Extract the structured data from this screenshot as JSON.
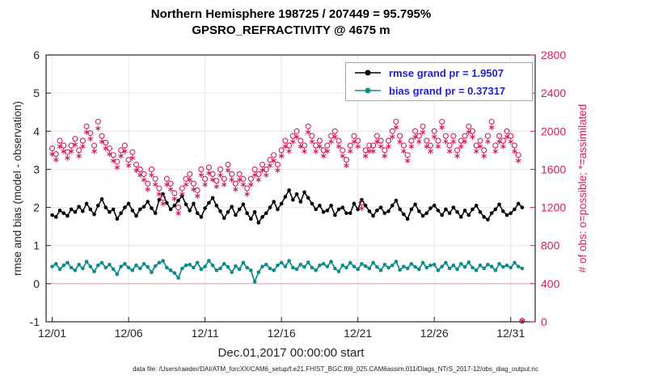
{
  "title": {
    "line1": "Northern Hemisphere 198725 / 207449 = 95.795%",
    "line2": "GPSRO_REFRACTIVITY @ 4675 m"
  },
  "axes": {
    "left_label": "rmse and bias (model - observation)",
    "right_label": "# of obs: o=possible; *=assimilated",
    "x_label": "Dec.01,2017 00:00:00 start",
    "left_ticks": [
      "-1",
      "0",
      "1",
      "2",
      "3",
      "4",
      "5",
      "6"
    ],
    "left_tick_values": [
      -1,
      0,
      1,
      2,
      3,
      4,
      5,
      6
    ],
    "right_ticks": [
      "0",
      "400",
      "800",
      "1200",
      "1600",
      "2000",
      "2400",
      "2800"
    ],
    "right_tick_values": [
      0,
      400,
      800,
      1200,
      1600,
      2000,
      2400,
      2800
    ],
    "x_tick_labels": [
      "12/01",
      "12/06",
      "12/11",
      "12/16",
      "12/21",
      "12/26",
      "12/31"
    ],
    "x_tick_days": [
      0,
      5,
      10,
      15,
      20,
      25,
      30
    ]
  },
  "legend": {
    "rmse_label": "rmse grand pr = 1.9507",
    "bias_label": "bias grand pr = 0.37317"
  },
  "footer": {
    "datafile": "data file: /Users/raeder/DAI/ATM_forcXX/CAM6_setup/f.e21.FHIST_BGC.f09_025.CAM6assim.011/Diags_NTrS_2017-12/obs_diag_output.nc"
  },
  "colors": {
    "rmse": "#000000",
    "bias": "#0f8b8b",
    "obs": "#d81b60",
    "legend_text": "#2222cc",
    "grid": "#e6e6e6",
    "zero_line": "#d4b4bc",
    "axis": "#262626"
  },
  "chart_data": {
    "type": "line+scatter",
    "x_start": 0,
    "x_step": 0.25,
    "x_range": [
      -0.4,
      31.6
    ],
    "y_left_range": [
      -1,
      6
    ],
    "y_right_range": [
      0,
      2800
    ],
    "series": [
      {
        "name": "rmse",
        "axis": "left",
        "marker": "dot-line",
        "values": [
          1.8,
          1.75,
          1.92,
          1.85,
          1.78,
          1.95,
          1.88,
          2.02,
          1.9,
          2.1,
          1.95,
          1.82,
          2.05,
          2.22,
          2.0,
          1.88,
          1.95,
          1.7,
          1.85,
          2.0,
          2.1,
          1.92,
          1.78,
          1.95,
          2.02,
          2.15,
          1.98,
          1.85,
          2.2,
          2.35,
          2.12,
          1.95,
          2.05,
          2.18,
          2.3,
          2.08,
          1.92,
          2.1,
          1.85,
          1.75,
          1.98,
          2.12,
          2.25,
          2.05,
          1.9,
          1.72,
          1.88,
          2.02,
          1.8,
          1.95,
          2.08,
          1.85,
          1.7,
          1.88,
          1.6,
          1.75,
          1.85,
          2.0,
          2.15,
          1.95,
          2.1,
          2.28,
          2.45,
          2.2,
          2.35,
          2.15,
          2.4,
          2.25,
          2.1,
          1.95,
          2.05,
          1.88,
          1.92,
          2.05,
          1.8,
          1.95,
          2.0,
          1.85,
          1.85,
          2.1,
          1.95,
          2.2,
          2.05,
          1.9,
          1.78,
          1.92,
          2.0,
          1.85,
          1.9,
          2.05,
          2.18,
          1.95,
          1.82,
          1.7,
          1.95,
          2.08,
          1.9,
          1.78,
          1.85,
          1.98,
          2.05,
          1.92,
          1.8,
          1.95,
          1.85,
          2.0,
          1.88,
          1.75,
          1.92,
          1.8,
          1.95,
          2.05,
          1.88,
          1.75,
          1.68,
          1.85,
          1.95,
          2.08,
          1.9,
          1.8,
          1.85,
          1.95,
          2.1,
          2.0
        ]
      },
      {
        "name": "bias",
        "axis": "left",
        "marker": "dot-line",
        "values": [
          0.45,
          0.52,
          0.38,
          0.48,
          0.55,
          0.42,
          0.35,
          0.5,
          0.4,
          0.58,
          0.45,
          0.32,
          0.48,
          0.55,
          0.42,
          0.5,
          0.38,
          0.25,
          0.45,
          0.52,
          0.42,
          0.35,
          0.48,
          0.4,
          0.52,
          0.44,
          0.3,
          0.46,
          0.55,
          0.6,
          0.42,
          0.35,
          0.28,
          0.15,
          0.4,
          0.48,
          0.5,
          0.42,
          0.55,
          0.38,
          0.45,
          0.6,
          0.48,
          0.35,
          0.4,
          0.52,
          0.44,
          0.3,
          0.46,
          0.38,
          0.55,
          0.42,
          0.35,
          0.05,
          0.3,
          0.45,
          0.5,
          0.4,
          0.35,
          0.48,
          0.55,
          0.45,
          0.6,
          0.42,
          0.38,
          0.5,
          0.44,
          0.56,
          0.42,
          0.35,
          0.48,
          0.52,
          0.45,
          0.58,
          0.4,
          0.32,
          0.48,
          0.42,
          0.55,
          0.45,
          0.38,
          0.52,
          0.46,
          0.4,
          0.55,
          0.44,
          0.35,
          0.5,
          0.42,
          0.48,
          0.58,
          0.36,
          0.45,
          0.4,
          0.52,
          0.44,
          0.38,
          0.55,
          0.42,
          0.48,
          0.5,
          0.35,
          0.45,
          0.55,
          0.4,
          0.48,
          0.38,
          0.52,
          0.44,
          0.56,
          0.42,
          0.35,
          0.48,
          0.4,
          0.5,
          0.45,
          0.35,
          0.52,
          0.44,
          0.48,
          0.42,
          0.55,
          0.45,
          0.4
        ]
      },
      {
        "name": "obs_possible",
        "axis": "right",
        "marker": "circle",
        "values": [
          1820,
          1760,
          1900,
          1850,
          1780,
          1850,
          1920,
          1800,
          1900,
          2050,
          1980,
          1850,
          2100,
          1950,
          1880,
          1820,
          1750,
          1680,
          1800,
          1850,
          1700,
          1780,
          1650,
          1600,
          1550,
          1450,
          1600,
          1500,
          1400,
          1300,
          1500,
          1450,
          1350,
          1200,
          1400,
          1500,
          1550,
          1450,
          1380,
          1600,
          1500,
          1620,
          1550,
          1480,
          1600,
          1500,
          1650,
          1550,
          1450,
          1550,
          1500,
          1400,
          1500,
          1600,
          1550,
          1650,
          1600,
          1700,
          1750,
          1650,
          1800,
          1900,
          1850,
          1950,
          2000,
          1900,
          1850,
          2050,
          1950,
          1850,
          1900,
          1800,
          1850,
          1950,
          2000,
          1900,
          1800,
          1700,
          1850,
          1950,
          1900,
          1250,
          1800,
          1850,
          1850,
          1950,
          1900,
          1800,
          1900,
          2000,
          2100,
          1950,
          1850,
          1750,
          1900,
          2000,
          1950,
          2050,
          1900,
          1850,
          2000,
          1900,
          2100,
          1950,
          1850,
          1950,
          1800,
          1900,
          1950,
          2050,
          2000,
          1850,
          1900,
          1800,
          1950,
          2100,
          1850,
          1950,
          1900,
          2000,
          1950,
          1850,
          1750,
          10
        ]
      },
      {
        "name": "obs_assimilated",
        "axis": "right",
        "marker": "asterisk",
        "values": [
          1760,
          1700,
          1840,
          1790,
          1720,
          1790,
          1860,
          1740,
          1840,
          1990,
          1920,
          1790,
          2030,
          1890,
          1820,
          1760,
          1690,
          1620,
          1740,
          1790,
          1640,
          1720,
          1590,
          1540,
          1490,
          1390,
          1540,
          1440,
          1340,
          1240,
          1440,
          1390,
          1290,
          1140,
          1340,
          1440,
          1490,
          1390,
          1320,
          1540,
          1440,
          1560,
          1490,
          1420,
          1540,
          1440,
          1590,
          1490,
          1390,
          1490,
          1440,
          1340,
          1440,
          1540,
          1490,
          1590,
          1540,
          1640,
          1690,
          1590,
          1740,
          1840,
          1790,
          1890,
          1940,
          1840,
          1790,
          1990,
          1890,
          1790,
          1840,
          1740,
          1790,
          1890,
          1940,
          1840,
          1740,
          1640,
          1790,
          1890,
          1840,
          1190,
          1740,
          1790,
          1790,
          1890,
          1840,
          1740,
          1840,
          1940,
          2040,
          1890,
          1790,
          1690,
          1840,
          1940,
          1890,
          1990,
          1840,
          1790,
          1940,
          1840,
          2040,
          1890,
          1790,
          1890,
          1740,
          1840,
          1890,
          1990,
          1940,
          1790,
          1840,
          1740,
          1890,
          2040,
          1790,
          1890,
          1840,
          1940,
          1890,
          1790,
          1690,
          10
        ]
      }
    ]
  }
}
